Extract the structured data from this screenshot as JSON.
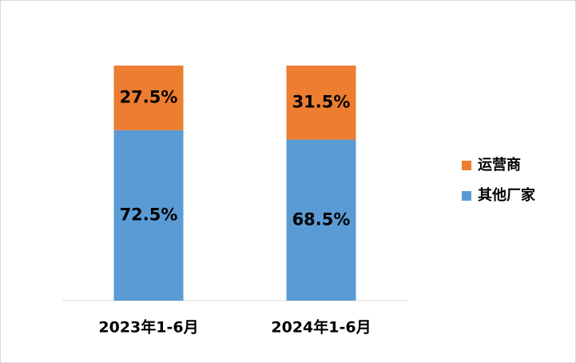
{
  "chart_data": {
    "type": "stacked_bar",
    "categories": [
      "2023年1-6月",
      "2024年1-6月"
    ],
    "series": [
      {
        "name": "其他厂家",
        "color": "#5b9bd5",
        "values": [
          72.5,
          68.5
        ],
        "value_labels": [
          "72.5%",
          "68.5%"
        ]
      },
      {
        "name": "运营商",
        "color": "#ed7d31",
        "values": [
          27.5,
          31.5
        ],
        "value_labels": [
          "27.5%",
          "31.5%"
        ]
      }
    ],
    "ylim": [
      0,
      100
    ],
    "legend": "right"
  }
}
